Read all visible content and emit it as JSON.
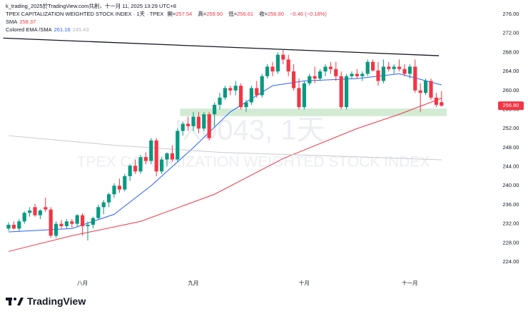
{
  "header": {
    "credit": "k_trading_2025於TradingView.com共創，十一月 11, 2025 13:29 UTC+8",
    "symbol": "TPEX CAPITALIZATION WEIGHTED STOCK INDEX · 1天 · TPEX",
    "ohlc": [
      {
        "label": "開=",
        "value": "257.54"
      },
      {
        "label": "高=",
        "value": "259.90"
      },
      {
        "label": "低=",
        "value": "256.61"
      },
      {
        "label": "收=",
        "value": "256.80"
      }
    ],
    "change": "−0.46 (−0.18%)",
    "indicators": [
      {
        "name": "SMA",
        "values": [
          "258.37"
        ]
      },
      {
        "name": "Colored EMA /SMA",
        "values": [
          "261.16",
          "245.43"
        ]
      }
    ]
  },
  "chart_data": {
    "type": "candlestick",
    "watermark": "IX0043, 1天",
    "watermark_sub": "TPEX CAPITALIZATION WEIGHTED STOCK INDEX",
    "categories": [
      null,
      null,
      null,
      null,
      null,
      null,
      null,
      null,
      null,
      null,
      null,
      null,
      null,
      null,
      "八月",
      null,
      null,
      null,
      null,
      null,
      null,
      null,
      null,
      null,
      null,
      null,
      null,
      null,
      null,
      null,
      null,
      null,
      null,
      null,
      null,
      "九月",
      null,
      null,
      null,
      null,
      null,
      null,
      null,
      null,
      null,
      null,
      null,
      null,
      null,
      null,
      null,
      null,
      null,
      null,
      null,
      null,
      "十月",
      null,
      null,
      null,
      null,
      null,
      null,
      null,
      null,
      null,
      null,
      null,
      null,
      null,
      null,
      null,
      null,
      null,
      null,
      null,
      "十一月",
      null,
      null,
      null,
      null,
      null,
      null
    ],
    "open": [
      231,
      231.8,
      231.0,
      232.5,
      234.3,
      235.5,
      233.8,
      235.5,
      235,
      229.5,
      232,
      231.5,
      232.5,
      232,
      233.8,
      231.5,
      231.8,
      233.2,
      235.5,
      236.5,
      238.2,
      240,
      239.2,
      242,
      244.2,
      243,
      246,
      245.2,
      249.5,
      243,
      245.5,
      246.8,
      245.5,
      251.5,
      253,
      252.5,
      254.5,
      252,
      255,
      255,
      257,
      258.5,
      260.5,
      260,
      261,
      256.5,
      257.5,
      260.5,
      259,
      263,
      265,
      264,
      267.5,
      266.5,
      264,
      260.5,
      256.5,
      261.5,
      263,
      262.5,
      264,
      265,
      264.5,
      263,
      256.5,
      263,
      263.5,
      263,
      263.5,
      266,
      264.2,
      262,
      265,
      264.5,
      265,
      264.5,
      263.5,
      265,
      260,
      259.5,
      262,
      258.5,
      257.54
    ],
    "high": [
      232.3,
      232.5,
      233,
      234.6,
      235.5,
      236.2,
      235,
      237.5,
      235.5,
      232.5,
      232.8,
      233,
      233,
      234,
      234.2,
      232.5,
      233.5,
      236,
      237,
      238.5,
      240.5,
      241.5,
      242.5,
      244.5,
      245.5,
      246.5,
      247,
      250,
      250,
      246,
      247,
      248.5,
      252,
      253.5,
      254.5,
      255.5,
      255.5,
      255.5,
      255.5,
      257.5,
      259.5,
      261,
      261,
      262,
      261.5,
      258,
      261,
      262,
      263.5,
      265.5,
      266,
      268,
      268.5,
      267.5,
      265.5,
      262.5,
      262,
      263.5,
      265,
      264.5,
      265.5,
      266,
      266,
      264,
      263.5,
      264,
      264.5,
      264,
      266.5,
      266.5,
      266,
      266.5,
      266,
      265.5,
      266.5,
      265.5,
      265.5,
      266.5,
      261.5,
      262.5,
      262.5,
      259.5,
      259.9
    ],
    "low": [
      230.5,
      230.8,
      230.5,
      232,
      233.5,
      233.5,
      233,
      234.5,
      229,
      229,
      231,
      231,
      231.2,
      231.5,
      229.5,
      228.5,
      231,
      233,
      234,
      235.5,
      237.5,
      238.5,
      238.8,
      241,
      242.5,
      242.5,
      244.5,
      244.5,
      242,
      242.5,
      244,
      245,
      245,
      250.5,
      251.5,
      251.5,
      251,
      251.5,
      249.5,
      252.5,
      256,
      258,
      259,
      259,
      256,
      255.5,
      257,
      258.5,
      258.5,
      262.5,
      263,
      263.5,
      265.5,
      263,
      260,
      256,
      256,
      261,
      261.5,
      262,
      263,
      263.5,
      262,
      256,
      256,
      262.5,
      262.5,
      262,
      263,
      264,
      261,
      261.5,
      264,
      263.5,
      264,
      263,
      262.5,
      259.5,
      255.5,
      259,
      258,
      256.5,
      256.61
    ],
    "close": [
      231.8,
      231.0,
      232.5,
      234.3,
      234.8,
      233.8,
      234.8,
      235,
      229.5,
      232,
      231.5,
      232.5,
      232,
      233.8,
      231.5,
      231.8,
      233.2,
      235.5,
      236.5,
      238.2,
      240,
      239.2,
      242,
      244.2,
      243,
      246,
      245.2,
      249.5,
      243,
      245.5,
      246.8,
      245.5,
      251.5,
      253,
      252.5,
      254.5,
      252,
      255,
      250,
      257,
      258.5,
      260.5,
      260,
      261,
      256.5,
      257.5,
      260.5,
      259,
      263,
      265,
      264,
      267.5,
      266.5,
      264,
      260.5,
      256.5,
      261.5,
      263,
      262.5,
      264,
      265,
      264.5,
      263,
      256.5,
      263,
      263.5,
      263,
      263.5,
      266,
      264.2,
      262,
      265,
      264.5,
      265,
      264.5,
      263.5,
      265,
      260,
      259.5,
      262,
      258.5,
      257,
      256.8
    ],
    "up_color": "#089981",
    "down_color": "#f23645",
    "lines": [
      {
        "color": "#f23645",
        "x": [
          0,
          12,
          25,
          39,
          52,
          66,
          74,
          82
        ],
        "values": [
          226.2,
          229.5,
          232.5,
          238.2,
          245.7,
          252,
          255,
          258.37
        ]
      },
      {
        "color": "#2962ff",
        "x": [
          0,
          12,
          20,
          27,
          35,
          42,
          50,
          56,
          66,
          74,
          82
        ],
        "values": [
          230.3,
          231,
          234,
          240,
          248,
          255.5,
          261,
          262,
          262.5,
          263.5,
          261.16
        ]
      },
      {
        "color": "#c9cbd1",
        "x": [
          0,
          20,
          40,
          60,
          82
        ],
        "values": [
          250.5,
          248.5,
          247,
          246.3,
          245.43
        ]
      }
    ],
    "trendline": {
      "color": "#131722",
      "x": [
        -1,
        81.5
      ],
      "values": [
        271,
        267.3
      ]
    },
    "zone": {
      "color": "#c8e6c9",
      "x": [
        32.5,
        83
      ],
      "low": 254.6,
      "high": 256.2
    },
    "ylim": [
      221.3,
      279
    ],
    "yticks": [
      {
        "value": 224,
        "label": "224.00"
      },
      {
        "value": 228,
        "label": "228.00"
      },
      {
        "value": 232,
        "label": "232.00"
      },
      {
        "value": 236,
        "label": "236.00"
      },
      {
        "value": 240,
        "label": "240.00"
      },
      {
        "value": 244,
        "label": "244.00"
      },
      {
        "value": 248,
        "label": "248.00"
      },
      {
        "value": 252,
        "label": "252.00"
      },
      {
        "value": 256,
        "label": "256.00"
      },
      {
        "value": 260,
        "label": "260.00"
      },
      {
        "value": 264,
        "label": "264.00"
      },
      {
        "value": 268,
        "label": "268.00"
      },
      {
        "value": 272,
        "label": "272.00"
      },
      {
        "value": 276,
        "label": "276.00"
      }
    ]
  },
  "footer": "TradingView"
}
